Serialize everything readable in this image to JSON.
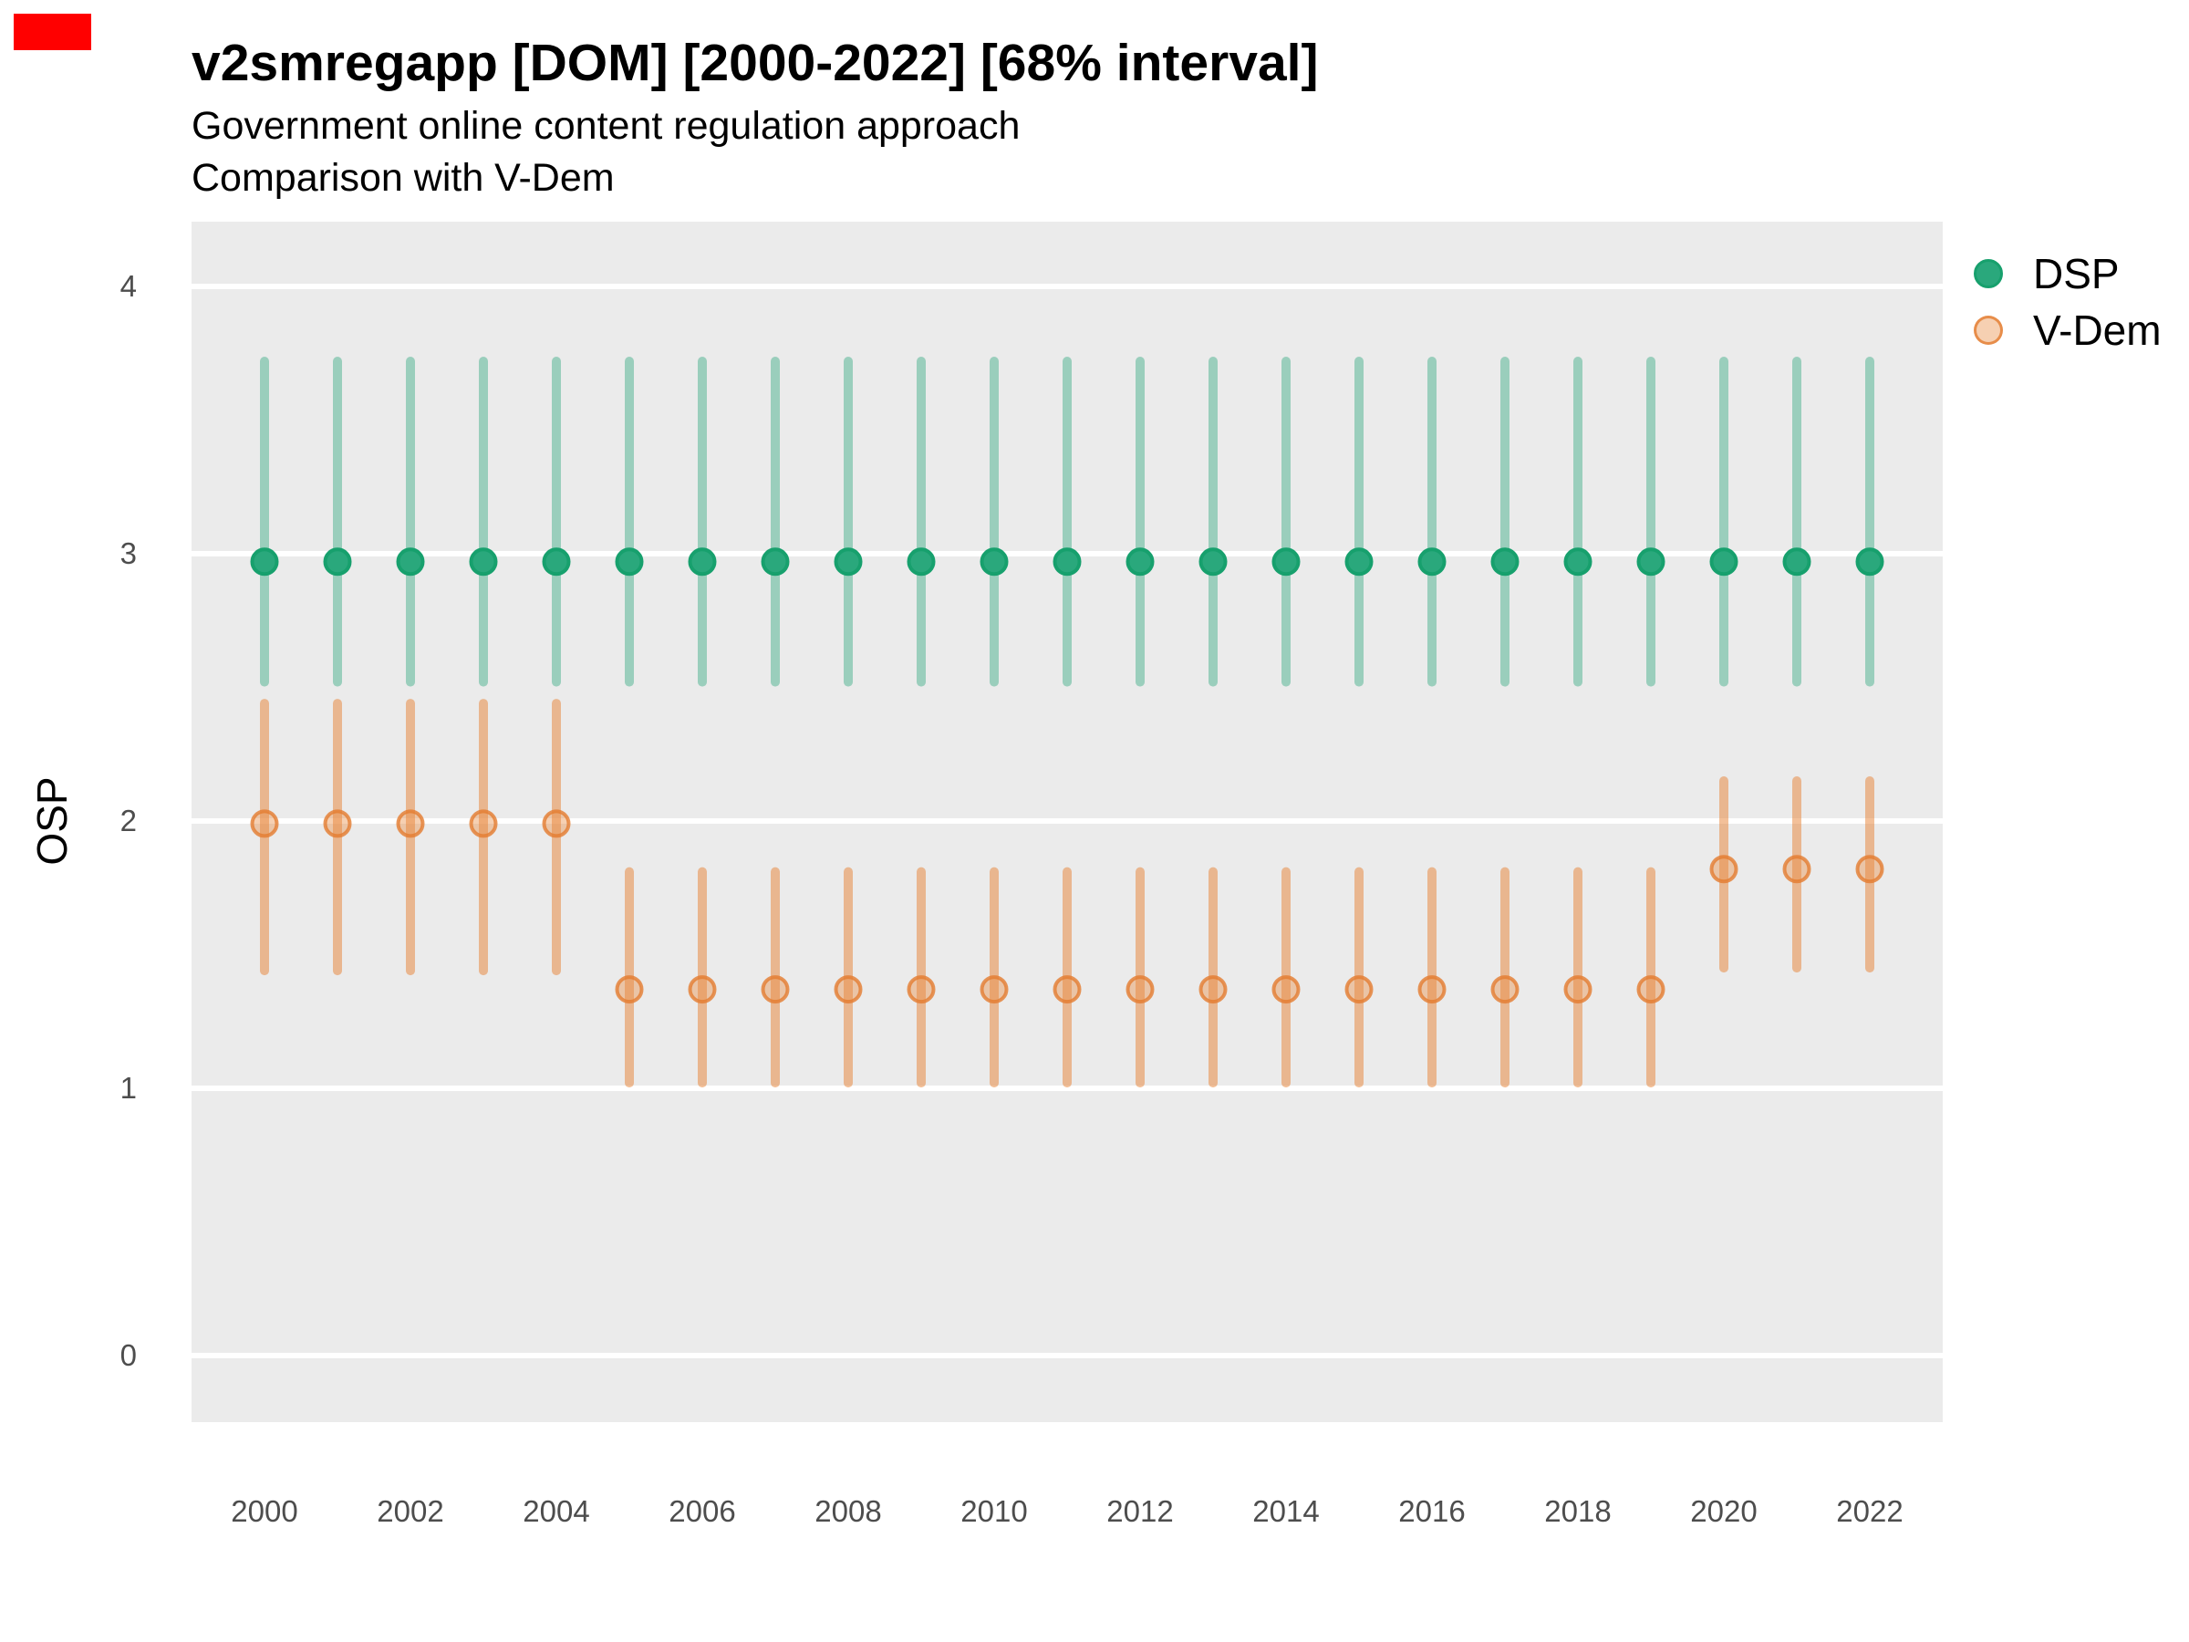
{
  "ui": {
    "background": "#ffffff",
    "panel_background": "#ebebeb",
    "gridline_color": "#ffffff",
    "axis_text_color": "#4d4d4d",
    "marker_color": "#ff0000"
  },
  "header": {
    "title": "v2smregapp [DOM] [2000-2022] [68% interval]",
    "subtitle_line1": "Government online content regulation approach",
    "subtitle_line2": "Comparison with V-Dem"
  },
  "legend": {
    "items": [
      {
        "label": "DSP",
        "fill": "#2aa87c",
        "border": "#17a06d"
      },
      {
        "label": "V-Dem",
        "fill": "rgba(232,138,62,0.4)",
        "border": "rgba(227,124,48,0.8)"
      }
    ]
  },
  "chart_data": {
    "type": "scatter",
    "title": "v2smregapp [DOM] [2000-2022] [68% interval]",
    "subtitle": [
      "Government online content regulation approach",
      "Comparison with V-Dem"
    ],
    "interval": "68%",
    "xlabel": "",
    "ylabel": "OSP",
    "x": [
      2000,
      2001,
      2002,
      2003,
      2004,
      2005,
      2006,
      2007,
      2008,
      2009,
      2010,
      2011,
      2012,
      2013,
      2014,
      2015,
      2016,
      2017,
      2018,
      2019,
      2020,
      2021,
      2022
    ],
    "xticks": [
      2000,
      2002,
      2004,
      2006,
      2008,
      2010,
      2012,
      2014,
      2016,
      2018,
      2020,
      2022
    ],
    "yticks": [
      0,
      1,
      2,
      3,
      4
    ],
    "ylim": [
      -0.25,
      4.24
    ],
    "grid": "major-only",
    "legend_position": "right-top",
    "series": [
      {
        "name": "DSP",
        "point_color": "#2aa87c",
        "point_border": "#17a06d",
        "bar_color": "rgba(42,168,124,0.42)",
        "values": [
          2.97,
          2.97,
          2.97,
          2.97,
          2.97,
          2.97,
          2.97,
          2.97,
          2.97,
          2.97,
          2.97,
          2.97,
          2.97,
          2.97,
          2.97,
          2.97,
          2.97,
          2.97,
          2.97,
          2.97,
          2.97,
          2.97,
          2.97
        ],
        "lo": [
          2.52,
          2.52,
          2.52,
          2.52,
          2.52,
          2.52,
          2.52,
          2.52,
          2.52,
          2.52,
          2.52,
          2.52,
          2.52,
          2.52,
          2.52,
          2.52,
          2.52,
          2.52,
          2.52,
          2.52,
          2.52,
          2.52,
          2.52
        ],
        "hi": [
          3.72,
          3.72,
          3.72,
          3.72,
          3.72,
          3.72,
          3.72,
          3.72,
          3.72,
          3.72,
          3.72,
          3.72,
          3.72,
          3.72,
          3.72,
          3.72,
          3.72,
          3.72,
          3.72,
          3.72,
          3.72,
          3.72,
          3.72
        ]
      },
      {
        "name": "V-Dem",
        "point_color": "rgba(232,138,62,0.4)",
        "point_border": "rgba(227,124,48,0.8)",
        "bar_color": "rgba(231,130,52,0.5)",
        "values": [
          1.99,
          1.99,
          1.99,
          1.99,
          1.99,
          1.37,
          1.37,
          1.37,
          1.37,
          1.37,
          1.37,
          1.37,
          1.37,
          1.37,
          1.37,
          1.37,
          1.37,
          1.37,
          1.37,
          1.37,
          1.82,
          1.82,
          1.82
        ],
        "lo": [
          1.44,
          1.44,
          1.44,
          1.44,
          1.44,
          1.02,
          1.02,
          1.02,
          1.02,
          1.02,
          1.02,
          1.02,
          1.02,
          1.02,
          1.02,
          1.02,
          1.02,
          1.02,
          1.02,
          1.02,
          1.45,
          1.45,
          1.45
        ],
        "hi": [
          2.44,
          2.44,
          2.44,
          2.44,
          2.44,
          1.81,
          1.81,
          1.81,
          1.81,
          1.81,
          1.81,
          1.81,
          1.81,
          1.81,
          1.81,
          1.81,
          1.81,
          1.81,
          1.81,
          1.81,
          2.15,
          2.15,
          2.15
        ]
      }
    ]
  }
}
